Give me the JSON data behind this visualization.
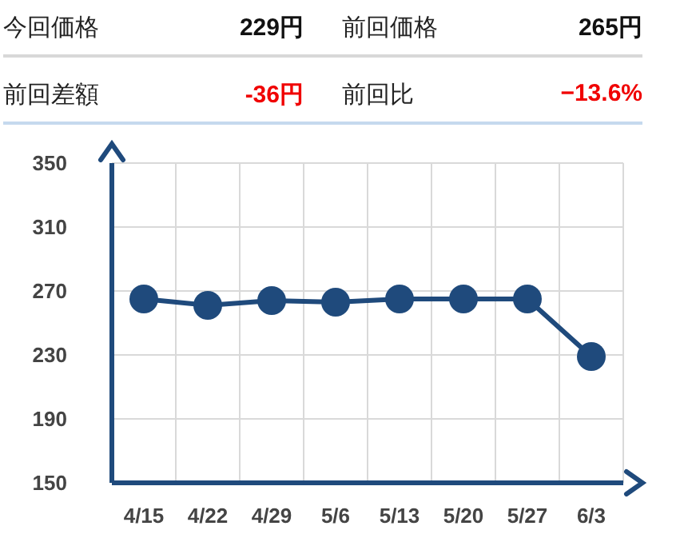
{
  "chart_data": {
    "type": "line",
    "annotations": [
      "今回価格",
      "229円",
      "前回価格",
      "265円",
      "前回差額",
      "-36円",
      "前回比",
      "−13.6%"
    ],
    "categories": [
      "4/15",
      "4/22",
      "4/29",
      "5/6",
      "5/13",
      "5/20",
      "5/27",
      "6/3"
    ],
    "series": [
      {
        "color": "#1f4a7c",
        "values": [
          265,
          261,
          264,
          263,
          265,
          265,
          265,
          229
        ]
      }
    ],
    "ylim": [
      150,
      350
    ],
    "yticks": [
      150,
      190,
      230,
      270,
      310,
      350
    ],
    "grid": true,
    "marker": "circle",
    "line_style": "solid",
    "legend": false
  }
}
